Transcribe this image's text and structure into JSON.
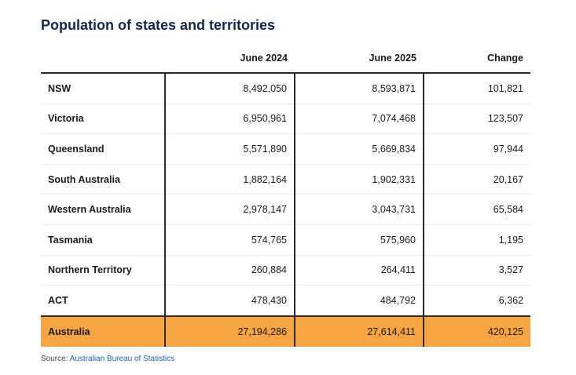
{
  "title": "Population of states and territories",
  "columns": [
    "",
    "June 2024",
    "June 2025",
    "Change"
  ],
  "rows": [
    {
      "name": "NSW",
      "jun2024": "8,492,050",
      "jun2025": "8,593,871",
      "change": "101,821"
    },
    {
      "name": "Victoria",
      "jun2024": "6,950,961",
      "jun2025": "7,074,468",
      "change": "123,507"
    },
    {
      "name": "Queensland",
      "jun2024": "5,571,890",
      "jun2025": "5,669,834",
      "change": "97,944"
    },
    {
      "name": "South Australia",
      "jun2024": "1,882,164",
      "jun2025": "1,902,331",
      "change": "20,167"
    },
    {
      "name": "Western Australia",
      "jun2024": "2,978,147",
      "jun2025": "3,043,731",
      "change": "65,584"
    },
    {
      "name": "Tasmania",
      "jun2024": "574,765",
      "jun2025": "575,960",
      "change": "1,195"
    },
    {
      "name": "Northern Territory",
      "jun2024": "260,884",
      "jun2025": "264,411",
      "change": "3,527"
    },
    {
      "name": "ACT",
      "jun2024": "478,430",
      "jun2025": "484,792",
      "change": "6,362"
    }
  ],
  "total": {
    "name": "Australia",
    "jun2024": "27,194,286",
    "jun2025": "27,614,411",
    "change": "420,125"
  },
  "source": {
    "prefix": "Source: ",
    "link_text": "Australian Bureau of Statistics"
  },
  "colors": {
    "title": "#14264a",
    "total_row": "#f7a443",
    "link": "#1f5fb4"
  },
  "chart_data": {
    "type": "table",
    "title": "Population of states and territories",
    "columns": [
      "",
      "June 2024",
      "June 2025",
      "Change"
    ],
    "rows": [
      [
        "NSW",
        8492050,
        8593871,
        101821
      ],
      [
        "Victoria",
        6950961,
        7074468,
        123507
      ],
      [
        "Queensland",
        5571890,
        5669834,
        97944
      ],
      [
        "South Australia",
        1882164,
        1902331,
        20167
      ],
      [
        "Western Australia",
        2978147,
        3043731,
        65584
      ],
      [
        "Tasmania",
        574765,
        575960,
        1195
      ],
      [
        "Northern Territory",
        260884,
        264411,
        3527
      ],
      [
        "ACT",
        478430,
        484792,
        6362
      ],
      [
        "Australia",
        27194286,
        27614411,
        420125
      ]
    ]
  }
}
